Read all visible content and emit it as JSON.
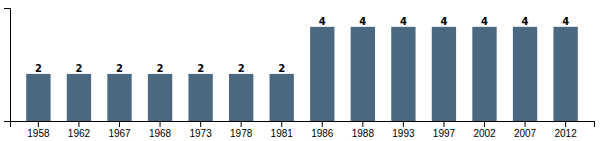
{
  "chart_data": {
    "type": "bar",
    "categories": [
      "1958",
      "1962",
      "1967",
      "1968",
      "1973",
      "1978",
      "1981",
      "1986",
      "1988",
      "1993",
      "1997",
      "2002",
      "2007",
      "2012"
    ],
    "values": [
      2,
      2,
      2,
      2,
      2,
      2,
      2,
      4,
      4,
      4,
      4,
      4,
      4,
      4
    ],
    "color": "#4a6882",
    "ylim": [
      0,
      4.8
    ],
    "data_labels": true,
    "tick_labels": "x"
  }
}
